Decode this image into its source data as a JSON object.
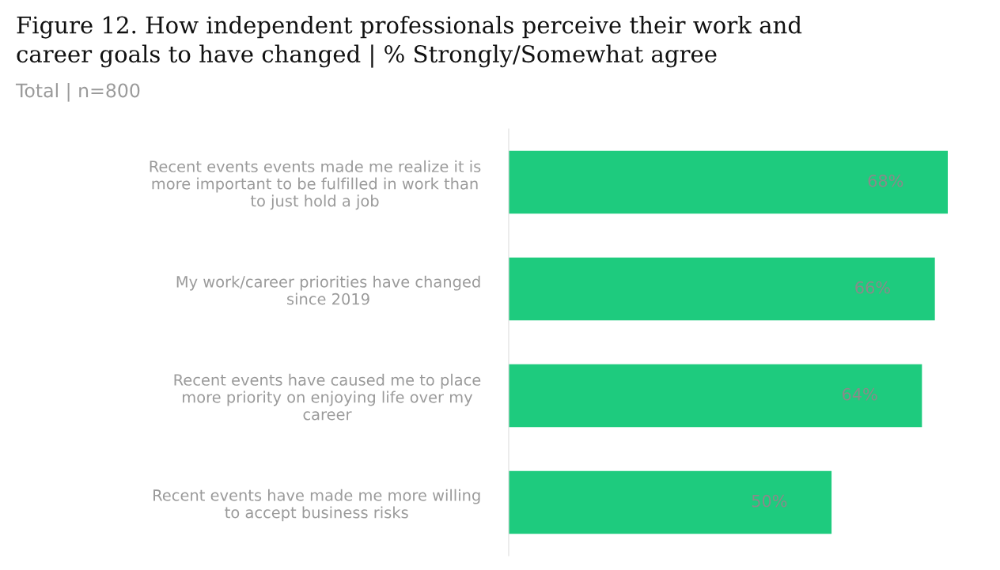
{
  "chart_data": {
    "type": "bar",
    "orientation": "horizontal",
    "title": "Figure 12. How independent professionals perceive their work and\ncareer goals to have changed | % Strongly/Somewhat agree",
    "subtitle": "Total | n=800",
    "categories": [
      "Recent events events made me realize it is\nmore important to be fulfilled in work than\nto just hold a job",
      "My work/career priorities have changed\nsince 2019",
      "Recent events have caused me to place\nmore priority on enjoying life over my\ncareer",
      "Recent events have made me more willing\nto accept business risks"
    ],
    "values": [
      68,
      66,
      64,
      50
    ],
    "value_labels": [
      "68%",
      "66%",
      "64%",
      "50%"
    ],
    "color": "#1ecb7e"
  }
}
